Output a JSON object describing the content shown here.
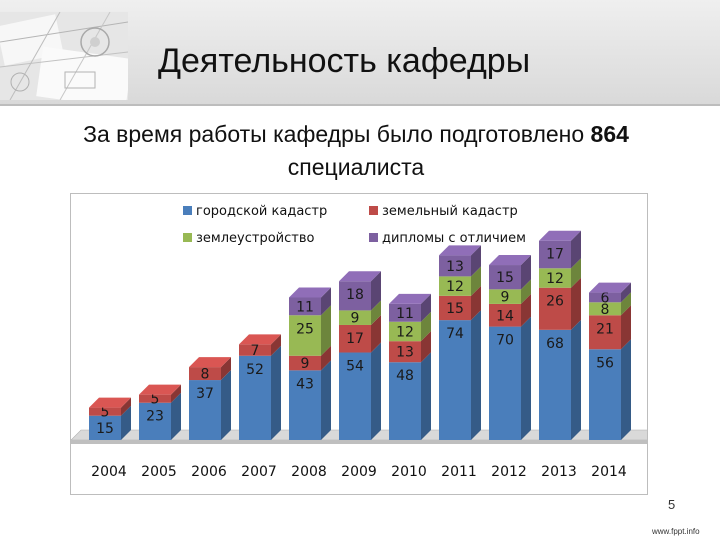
{
  "slide": {
    "title": "Деятельность кафедры",
    "subtitle_before": "За время работы кафедры было подготовлено",
    "subtitle_number": "864",
    "subtitle_after": "специалиста",
    "page_number": "5",
    "footer_url": "www.fppt.info"
  },
  "chart_data": {
    "type": "bar",
    "stacked": true,
    "style": "3d",
    "categories": [
      "2004",
      "2005",
      "2006",
      "2007",
      "2008",
      "2009",
      "2010",
      "2011",
      "2012",
      "2013",
      "2014"
    ],
    "series": [
      {
        "name": "городской кадастр",
        "color": "#4a7ebb",
        "values": [
          15,
          23,
          37,
          52,
          43,
          54,
          48,
          74,
          70,
          68,
          56
        ]
      },
      {
        "name": "земельный кадастр",
        "color": "#be4b48",
        "values": [
          5,
          5,
          8,
          7,
          9,
          17,
          13,
          15,
          14,
          26,
          21
        ]
      },
      {
        "name": "землеустройство",
        "color": "#98b954",
        "values": [
          null,
          null,
          null,
          null,
          25,
          9,
          12,
          12,
          9,
          12,
          8
        ]
      },
      {
        "name": "дипломы с отличием",
        "color": "#7d60a0",
        "values": [
          null,
          null,
          null,
          null,
          11,
          18,
          11,
          13,
          15,
          17,
          6
        ]
      }
    ],
    "legend_position": "top",
    "grid": false,
    "ylim": [
      0,
      120
    ]
  }
}
